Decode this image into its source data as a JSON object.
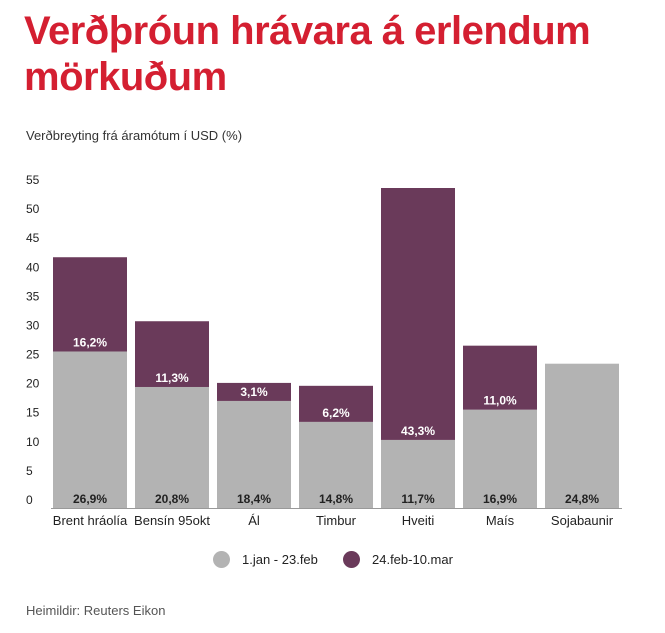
{
  "page": {
    "title": "Verðþróun hrávara á erlendum mörkuðum",
    "subtitle": "Verðbreyting frá áramótum í USD (%)",
    "source": "Heimildir: Reuters Eikon"
  },
  "colors": {
    "series1": "#b3b3b3",
    "series2": "#6a3a5a",
    "title": "#d41f31"
  },
  "chart_data": {
    "type": "bar",
    "stacked": true,
    "title": "Verðþróun hrávara á erlendum mörkuðum",
    "ylabel": "Verðbreyting frá áramótum í USD (%)",
    "xlabel": "",
    "ylim": [
      0,
      55
    ],
    "yticks": [
      0,
      5,
      10,
      15,
      20,
      25,
      30,
      35,
      40,
      45,
      50,
      55
    ],
    "grid": false,
    "legend_position": "bottom",
    "categories": [
      "Brent hráolía",
      "Bensín 95okt",
      "Ál",
      "Timbur",
      "Hveiti",
      "Maís",
      "Sojabaunir"
    ],
    "series": [
      {
        "name": "1.jan - 23.feb",
        "color": "#b3b3b3",
        "values": [
          26.9,
          20.8,
          18.4,
          14.8,
          11.7,
          16.9,
          24.8
        ],
        "labels": [
          "26,9%",
          "20,8%",
          "18,4%",
          "14,8%",
          "11,7%",
          "16,9%",
          "24,8%"
        ]
      },
      {
        "name": "24.feb-10.mar",
        "color": "#6a3a5a",
        "values": [
          16.2,
          11.3,
          3.1,
          6.2,
          43.3,
          11.0,
          null
        ],
        "labels": [
          "16,2%",
          "11,3%",
          "3,1%",
          "6,2%",
          "43,3%",
          "11,0%",
          null
        ]
      }
    ]
  }
}
